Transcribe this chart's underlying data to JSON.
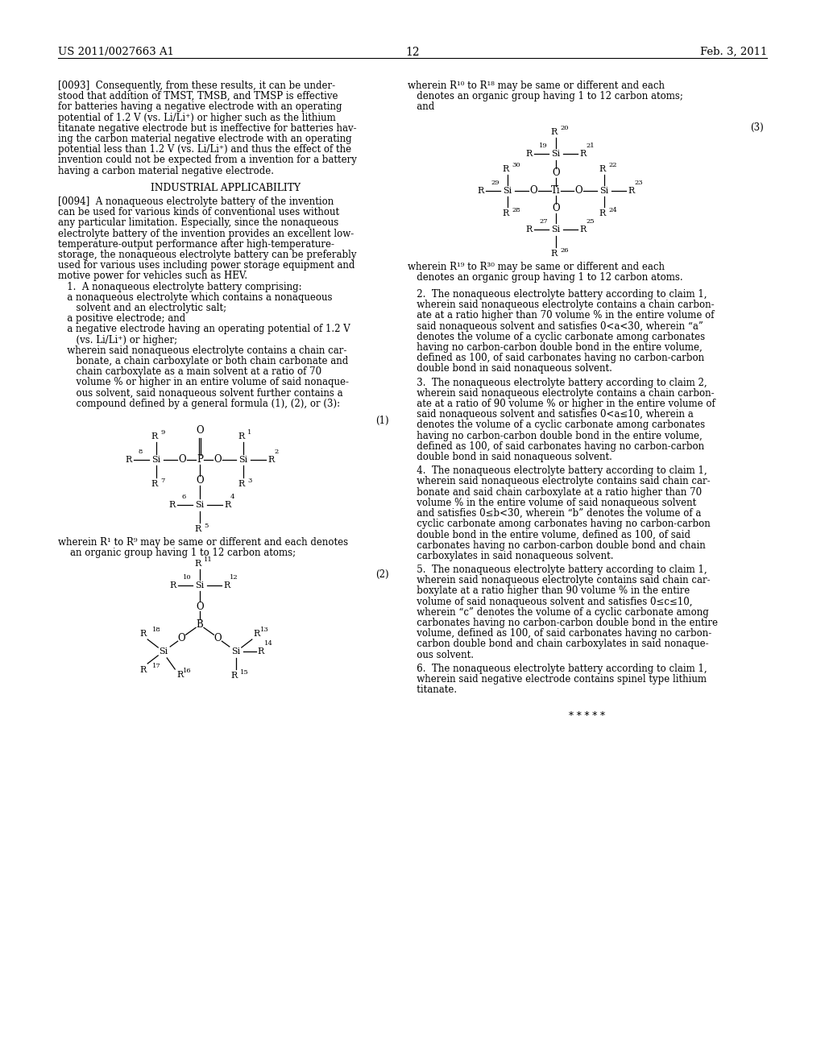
{
  "bg": "#ffffff",
  "header_left": "US 2011/0027663 A1",
  "header_page": "12",
  "header_right": "Feb. 3, 2011"
}
